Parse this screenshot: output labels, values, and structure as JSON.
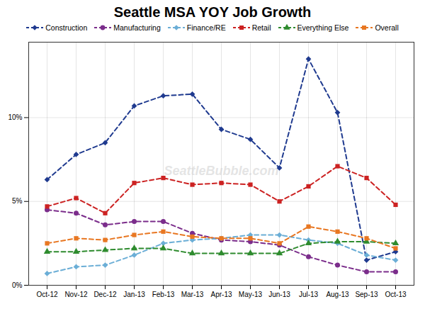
{
  "chart_data": {
    "type": "line",
    "title": "Seattle MSA YOY Job Growth",
    "categories": [
      "Oct-12",
      "Nov-12",
      "Dec-12",
      "Jan-13",
      "Feb-13",
      "Mar-13",
      "Apr-13",
      "May-13",
      "Jun-13",
      "Jul-13",
      "Aug-13",
      "Sep-13",
      "Oct-13"
    ],
    "series": [
      {
        "name": "Construction",
        "color": "#1F3A8F",
        "marker": "diamond",
        "line_style": "dashed",
        "values": [
          6.3,
          7.8,
          8.5,
          10.7,
          11.3,
          11.4,
          9.3,
          8.7,
          7.0,
          13.5,
          10.3,
          1.5,
          2.0
        ]
      },
      {
        "name": "Manufacturing",
        "color": "#7B2D8B",
        "marker": "circle",
        "line_style": "dashed",
        "values": [
          4.5,
          4.3,
          3.6,
          3.8,
          3.8,
          3.1,
          2.7,
          2.6,
          2.4,
          1.7,
          1.2,
          0.8,
          0.8
        ]
      },
      {
        "name": "Finance/RE",
        "color": "#6BAED6",
        "marker": "diamond",
        "line_style": "dashed",
        "values": [
          0.7,
          1.1,
          1.2,
          1.8,
          2.5,
          2.7,
          2.8,
          3.0,
          3.0,
          2.7,
          2.5,
          1.8,
          1.5
        ]
      },
      {
        "name": "Retail",
        "color": "#CC2222",
        "marker": "square",
        "line_style": "dashed",
        "values": [
          4.7,
          5.2,
          4.3,
          6.1,
          6.4,
          6.0,
          6.1,
          6.0,
          5.0,
          5.9,
          7.1,
          6.4,
          4.8
        ]
      },
      {
        "name": "Everything Else",
        "color": "#2E8B2E",
        "marker": "triangle",
        "line_style": "dashed",
        "values": [
          2.0,
          2.0,
          2.1,
          2.2,
          2.2,
          1.9,
          1.9,
          1.9,
          1.9,
          2.5,
          2.6,
          2.6,
          2.5
        ]
      },
      {
        "name": "Overall",
        "color": "#E87722",
        "marker": "square",
        "line_style": "dashed",
        "values": [
          2.5,
          2.8,
          2.7,
          3.0,
          3.2,
          2.9,
          2.8,
          2.8,
          2.5,
          3.5,
          3.2,
          2.8,
          2.2
        ]
      }
    ],
    "ylim": [
      0,
      14.5
    ],
    "yticks": [
      {
        "value": 0,
        "label": "0%"
      },
      {
        "value": 5,
        "label": "5%"
      },
      {
        "value": 10,
        "label": "10%"
      }
    ],
    "grid": true,
    "legend": "top",
    "annotations": [
      "SeattleBubble.com"
    ]
  }
}
